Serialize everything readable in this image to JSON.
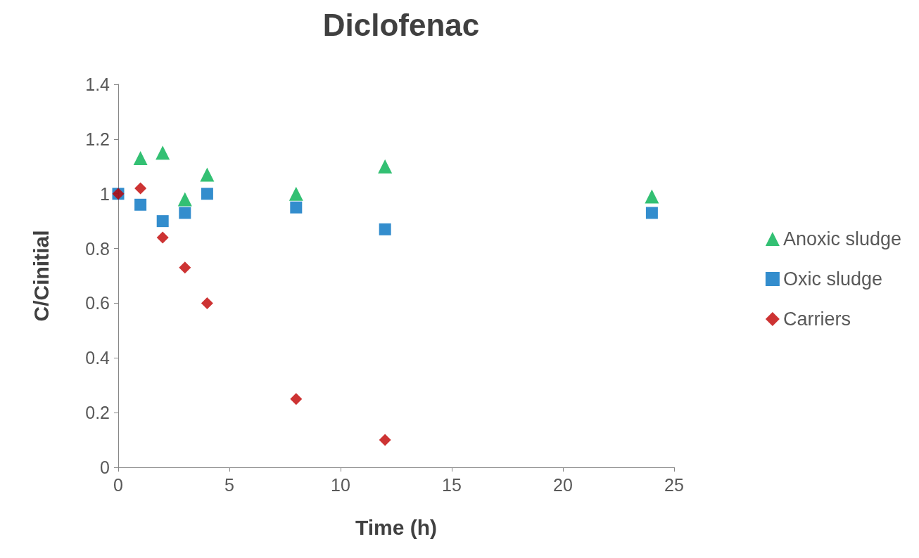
{
  "chart_data": {
    "type": "scatter",
    "title": "Diclofenac",
    "xlabel": "Time (h)",
    "ylabel": "C/Cinitial",
    "xlim": [
      0,
      25
    ],
    "xticks": [
      0,
      5,
      10,
      15,
      20,
      25
    ],
    "ylim": [
      0,
      1.4
    ],
    "yticks": [
      0,
      0.2,
      0.4,
      0.6,
      0.8,
      1,
      1.2,
      1.4
    ],
    "grid": false,
    "legend": "right",
    "series": [
      {
        "name": "Anoxic sludge",
        "color": "#00b050",
        "marker": "triangle",
        "x": [
          1,
          2,
          3,
          4,
          8,
          12,
          24
        ],
        "values": [
          1.13,
          1.15,
          0.98,
          1.07,
          1.0,
          1.1,
          0.99
        ]
      },
      {
        "name": "Oxic sludge",
        "color": "#0070c0",
        "marker": "square",
        "x": [
          0,
          1,
          2,
          3,
          4,
          8,
          12,
          24
        ],
        "values": [
          1.0,
          0.96,
          0.9,
          0.93,
          1.0,
          0.95,
          0.87,
          0.93
        ]
      },
      {
        "name": "Carriers",
        "color": "#c00000",
        "marker": "diamond",
        "x": [
          0,
          1,
          2,
          3,
          4,
          8,
          12
        ],
        "values": [
          1.0,
          1.02,
          0.84,
          0.73,
          0.6,
          0.25,
          0.1
        ]
      }
    ]
  }
}
